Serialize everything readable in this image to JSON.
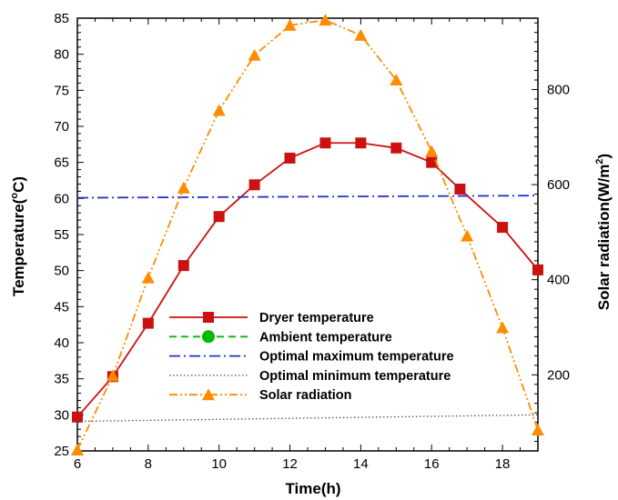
{
  "chart_data": {
    "type": "line",
    "xlabel": "Time(h)",
    "ylabel_left": "Temperature(",
    "ylabel_left_sup": "o",
    "ylabel_left_end": "C)",
    "ylabel_right": "Solar radiation(W/m",
    "ylabel_right_sup": "2",
    "ylabel_right_end": ")",
    "xlim": [
      6,
      19
    ],
    "ylim_left": [
      25,
      85
    ],
    "ylim_right": [
      40,
      950
    ],
    "x_ticks": [
      6,
      8,
      10,
      12,
      14,
      16,
      18
    ],
    "y_left_ticks": [
      25,
      30,
      35,
      40,
      45,
      50,
      55,
      60,
      65,
      70,
      75,
      80,
      85
    ],
    "y_right_ticks": [
      200,
      400,
      600,
      800
    ],
    "grid": false,
    "legend_position": "lower-center",
    "series": [
      {
        "name": "Dryer temperature",
        "axis": "left",
        "color": "#cc1111",
        "marker": "square",
        "dash": "solid",
        "x": [
          6,
          7,
          8,
          9,
          10,
          11,
          12,
          13,
          14,
          15,
          16,
          16.8,
          18,
          19
        ],
        "y": [
          29.7,
          35.3,
          42.7,
          50.7,
          57.5,
          61.9,
          65.6,
          67.7,
          67.7,
          67.0,
          65.0,
          61.3,
          56.0,
          50.1
        ]
      },
      {
        "name": "Ambient temperature",
        "axis": "left",
        "color": "#00bb00",
        "marker": "circle",
        "dash": "dashed",
        "x": [],
        "y": []
      },
      {
        "name": "Optimal maximum temperature",
        "axis": "left",
        "color": "#2233cc",
        "marker": "none",
        "dash": "dashdot",
        "x": [
          6,
          19
        ],
        "y": [
          60.1,
          60.4
        ]
      },
      {
        "name": "Optimal minimum temperature",
        "axis": "left",
        "color": "#555555",
        "marker": "none",
        "dash": "dotted",
        "x": [
          6,
          19
        ],
        "y": [
          29.1,
          30.0
        ]
      },
      {
        "name": "Solar radiation",
        "axis": "right",
        "color": "#ff8c00",
        "marker": "triangle",
        "dash": "dashdotdot",
        "x": [
          6,
          7,
          8,
          9,
          10,
          11,
          12,
          13,
          14,
          15,
          16,
          17,
          18,
          19
        ],
        "y": [
          42,
          198,
          404,
          593,
          756,
          872,
          935,
          946,
          914,
          820,
          670,
          492,
          299,
          84
        ]
      }
    ]
  }
}
